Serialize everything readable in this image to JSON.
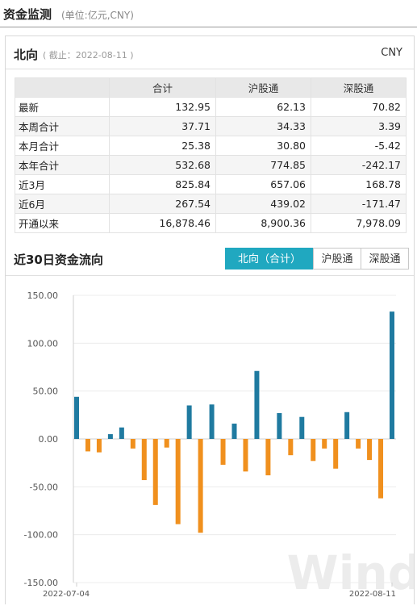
{
  "header": {
    "title": "资金监测",
    "unit": "(单位:亿元,CNY)"
  },
  "northbound": {
    "title": "北向",
    "date": "( 截止：2022-08-11 )",
    "currency": "CNY",
    "columns": [
      "",
      "合计",
      "沪股通",
      "深股通"
    ],
    "rows": [
      [
        "最新",
        "132.95",
        "62.13",
        "70.82"
      ],
      [
        "本周合计",
        "37.71",
        "34.33",
        "3.39"
      ],
      [
        "本月合计",
        "25.38",
        "30.80",
        "-5.42"
      ],
      [
        "本年合计",
        "532.68",
        "774.85",
        "-242.17"
      ],
      [
        "近3月",
        "825.84",
        "657.06",
        "168.78"
      ],
      [
        "近6月",
        "267.54",
        "439.02",
        "-171.47"
      ],
      [
        "开通以来",
        "16,878.46",
        "8,900.36",
        "7,978.09"
      ]
    ]
  },
  "flow": {
    "title": "近30日资金流向",
    "tabs": [
      {
        "label": "北向（合计）",
        "active": true
      },
      {
        "label": "沪股通",
        "active": false
      },
      {
        "label": "深股通",
        "active": false
      }
    ]
  },
  "watermark": "Wind",
  "colors": {
    "positive": "#1f7aa0",
    "negative": "#f0901e",
    "accent": "#20a8c0"
  },
  "chart_data": {
    "type": "bar",
    "title": "",
    "xlabel": "",
    "ylabel": "",
    "ylim": [
      -150,
      150
    ],
    "yticks": [
      150,
      100,
      50,
      0,
      -50,
      -100,
      -150
    ],
    "ytick_labels": [
      "150.00",
      "100.00",
      "50.00",
      "0.00",
      "-50.00",
      "-100.00",
      "-150.00"
    ],
    "x_labels": [
      "2022-07-04",
      "2022-08-11"
    ],
    "values": [
      44,
      -13,
      -14,
      5,
      12,
      -10,
      -43,
      -69,
      -9,
      -89,
      35,
      -98,
      36,
      -27,
      16,
      -34,
      71,
      -38,
      27,
      -17,
      23,
      -23,
      -10,
      -31,
      28,
      -10,
      -22,
      -62,
      133
    ]
  }
}
